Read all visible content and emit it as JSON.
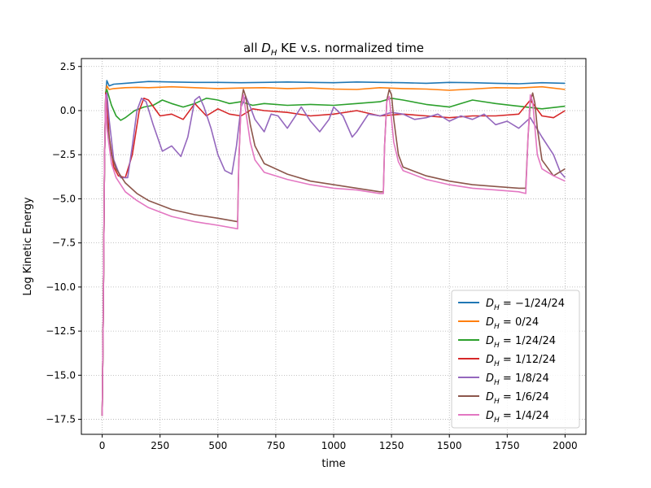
{
  "chart_data": {
    "type": "line",
    "title": "all D_H KE v.s. normalized time",
    "title_parts": {
      "prefix": "all ",
      "symbol": "D",
      "subscript": "H",
      "suffix": " KE v.s. normalized time"
    },
    "xlabel": "time",
    "ylabel": "Log Kinetic Energy",
    "xlim": [
      -90,
      2090
    ],
    "ylim": [
      -18.35,
      2.95
    ],
    "xticks": [
      0,
      250,
      500,
      750,
      1000,
      1250,
      1500,
      1750,
      2000
    ],
    "xtick_labels": [
      "0",
      "250",
      "500",
      "750",
      "1000",
      "1250",
      "1500",
      "1750",
      "2000"
    ],
    "yticks": [
      2.5,
      0.0,
      -2.5,
      -5.0,
      -7.5,
      -10.0,
      -12.5,
      -15.0,
      -17.5
    ],
    "ytick_labels": [
      "2.5",
      "0.0",
      "−2.5",
      "−5.0",
      "−7.5",
      "−10.0",
      "−12.5",
      "−15.0",
      "−17.5"
    ],
    "grid": true,
    "legend_placement": "lower-right",
    "series": [
      {
        "name": "D_H = −1/24/24",
        "label_symbol": "D",
        "label_subscript": "H",
        "label_rest": " = −1/24/24",
        "color": "#1f77b4",
        "x": [
          0,
          5,
          10,
          15,
          20,
          30,
          50,
          100,
          150,
          200,
          300,
          400,
          500,
          600,
          700,
          800,
          900,
          1000,
          1100,
          1200,
          1300,
          1400,
          1500,
          1600,
          1700,
          1800,
          1900,
          2000
        ],
        "y": [
          -17.3,
          -11,
          -3,
          1.0,
          1.7,
          1.4,
          1.5,
          1.55,
          1.6,
          1.65,
          1.62,
          1.6,
          1.6,
          1.58,
          1.6,
          1.62,
          1.6,
          1.58,
          1.62,
          1.6,
          1.58,
          1.55,
          1.6,
          1.58,
          1.55,
          1.52,
          1.58,
          1.55
        ]
      },
      {
        "name": "D_H = 0/24",
        "label_symbol": "D",
        "label_subscript": "H",
        "label_rest": " = 0/24",
        "color": "#ff7f0e",
        "x": [
          0,
          5,
          10,
          15,
          20,
          30,
          50,
          100,
          150,
          200,
          300,
          400,
          500,
          600,
          700,
          800,
          900,
          1000,
          1100,
          1200,
          1300,
          1400,
          1500,
          1600,
          1700,
          1800,
          1900,
          2000
        ],
        "y": [
          -17.3,
          -11,
          -3,
          1.0,
          1.4,
          1.2,
          1.25,
          1.3,
          1.32,
          1.3,
          1.35,
          1.3,
          1.25,
          1.28,
          1.3,
          1.25,
          1.28,
          1.22,
          1.2,
          1.3,
          1.25,
          1.22,
          1.15,
          1.22,
          1.3,
          1.28,
          1.35,
          1.2
        ]
      },
      {
        "name": "D_H = 1/24/24",
        "label_symbol": "D",
        "label_subscript": "H",
        "label_rest": " = 1/24/24",
        "color": "#2ca02c",
        "x": [
          0,
          5,
          10,
          15,
          20,
          40,
          60,
          80,
          100,
          140,
          180,
          220,
          260,
          300,
          350,
          400,
          450,
          500,
          550,
          600,
          650,
          700,
          800,
          900,
          1000,
          1100,
          1200,
          1250,
          1300,
          1400,
          1500,
          1600,
          1700,
          1800,
          1900,
          2000
        ],
        "y": [
          -17.3,
          -11,
          -3,
          1.0,
          1.2,
          0.3,
          -0.3,
          -0.55,
          -0.4,
          0.0,
          0.2,
          0.3,
          0.6,
          0.4,
          0.2,
          0.4,
          0.7,
          0.6,
          0.4,
          0.5,
          0.3,
          0.4,
          0.3,
          0.35,
          0.3,
          0.4,
          0.5,
          0.7,
          0.6,
          0.35,
          0.2,
          0.6,
          0.4,
          0.25,
          0.1,
          0.25
        ]
      },
      {
        "name": "D_H = 1/12/24",
        "label_symbol": "D",
        "label_subscript": "H",
        "label_rest": " = 1/12/24",
        "color": "#d62728",
        "x": [
          0,
          5,
          10,
          15,
          20,
          30,
          50,
          70,
          100,
          130,
          160,
          180,
          200,
          250,
          300,
          350,
          400,
          450,
          500,
          550,
          600,
          650,
          700,
          800,
          900,
          1000,
          1100,
          1200,
          1300,
          1400,
          1500,
          1600,
          1700,
          1800,
          1850,
          1900,
          1950,
          2000
        ],
        "y": [
          -17.3,
          -11,
          -3,
          1.0,
          0.8,
          -1.5,
          -3.2,
          -3.7,
          -3.8,
          -2.5,
          0.0,
          0.7,
          0.6,
          -0.3,
          -0.2,
          -0.5,
          0.4,
          -0.3,
          0.1,
          -0.2,
          -0.3,
          0.1,
          0.0,
          -0.1,
          -0.3,
          -0.2,
          0.0,
          -0.3,
          -0.2,
          -0.3,
          -0.4,
          -0.3,
          -0.3,
          -0.2,
          0.6,
          -0.3,
          -0.4,
          0.0
        ]
      },
      {
        "name": "D_H = 1/8/24",
        "label_symbol": "D",
        "label_subscript": "H",
        "label_rest": " = 1/8/24",
        "color": "#9467bd",
        "x": [
          0,
          5,
          10,
          15,
          20,
          30,
          50,
          80,
          110,
          130,
          150,
          170,
          190,
          220,
          260,
          300,
          340,
          370,
          400,
          420,
          440,
          470,
          500,
          530,
          560,
          580,
          600,
          620,
          640,
          660,
          700,
          730,
          760,
          800,
          830,
          860,
          900,
          940,
          980,
          1000,
          1040,
          1080,
          1100,
          1150,
          1200,
          1250,
          1300,
          1350,
          1400,
          1450,
          1500,
          1550,
          1600,
          1650,
          1700,
          1750,
          1800,
          1850,
          1900,
          1950,
          1980,
          2000
        ],
        "y": [
          -17.3,
          -11,
          -3,
          0.8,
          1.0,
          -0.5,
          -2.8,
          -3.8,
          -3.8,
          -2.0,
          0.0,
          0.7,
          0.5,
          -0.8,
          -2.3,
          -2.0,
          -2.6,
          -1.5,
          0.6,
          0.8,
          0.2,
          -1.0,
          -2.5,
          -3.4,
          -3.6,
          -2.0,
          0.2,
          0.8,
          0.2,
          -0.5,
          -1.2,
          -0.2,
          -0.3,
          -1.0,
          -0.4,
          0.2,
          -0.6,
          -1.2,
          -0.5,
          0.2,
          -0.3,
          -1.5,
          -1.2,
          -0.2,
          -0.3,
          -0.1,
          -0.2,
          -0.5,
          -0.4,
          -0.2,
          -0.6,
          -0.3,
          -0.5,
          -0.2,
          -0.8,
          -0.6,
          -1.0,
          -0.4,
          -1.5,
          -2.5,
          -3.5,
          -3.8
        ]
      },
      {
        "name": "D_H = 1/6/24",
        "label_symbol": "D",
        "label_subscript": "H",
        "label_rest": " = 1/6/24",
        "color": "#8c564b",
        "x": [
          0,
          5,
          10,
          15,
          20,
          40,
          60,
          100,
          150,
          200,
          300,
          400,
          500,
          585,
          590,
          600,
          610,
          620,
          640,
          660,
          700,
          800,
          900,
          1000,
          1100,
          1200,
          1215,
          1220,
          1230,
          1240,
          1250,
          1260,
          1280,
          1300,
          1400,
          1500,
          1600,
          1700,
          1800,
          1830,
          1840,
          1850,
          1860,
          1870,
          1880,
          1900,
          1950,
          2000
        ],
        "y": [
          -17.3,
          -11,
          -3,
          0.7,
          -0.5,
          -2.5,
          -3.3,
          -4.1,
          -4.7,
          -5.1,
          -5.6,
          -5.9,
          -6.1,
          -6.3,
          -3.0,
          0.4,
          1.2,
          0.8,
          -0.8,
          -2.0,
          -3.0,
          -3.6,
          -4.0,
          -4.2,
          -4.4,
          -4.6,
          -4.6,
          -2.0,
          0.6,
          1.2,
          0.9,
          -0.5,
          -2.5,
          -3.2,
          -3.7,
          -4.0,
          -4.2,
          -4.3,
          -4.4,
          -4.4,
          -1.5,
          0.5,
          1.0,
          0.4,
          -1.0,
          -2.8,
          -3.7,
          -3.3
        ]
      },
      {
        "name": "D_H = 1/4/24",
        "label_symbol": "D",
        "label_subscript": "H",
        "label_rest": " = 1/4/24",
        "color": "#e377c2",
        "x": [
          0,
          5,
          10,
          15,
          20,
          40,
          60,
          100,
          150,
          200,
          300,
          400,
          500,
          585,
          590,
          600,
          610,
          620,
          640,
          660,
          700,
          800,
          900,
          1000,
          1100,
          1200,
          1215,
          1220,
          1230,
          1240,
          1250,
          1260,
          1280,
          1300,
          1400,
          1500,
          1600,
          1700,
          1800,
          1830,
          1840,
          1850,
          1860,
          1870,
          1880,
          1900,
          1950,
          2000
        ],
        "y": [
          -17.3,
          -11,
          -3,
          0.9,
          -1.0,
          -3.0,
          -3.8,
          -4.6,
          -5.1,
          -5.5,
          -6.0,
          -6.3,
          -6.5,
          -6.7,
          -3.0,
          0.2,
          0.9,
          0.0,
          -1.8,
          -2.8,
          -3.5,
          -3.9,
          -4.2,
          -4.4,
          -4.5,
          -4.7,
          -4.7,
          -2.0,
          0.5,
          0.8,
          -0.5,
          -1.8,
          -2.9,
          -3.4,
          -3.9,
          -4.2,
          -4.4,
          -4.5,
          -4.6,
          -4.7,
          -1.5,
          0.9,
          0.5,
          -1.0,
          -2.5,
          -3.3,
          -3.7,
          -4.0
        ]
      }
    ]
  }
}
